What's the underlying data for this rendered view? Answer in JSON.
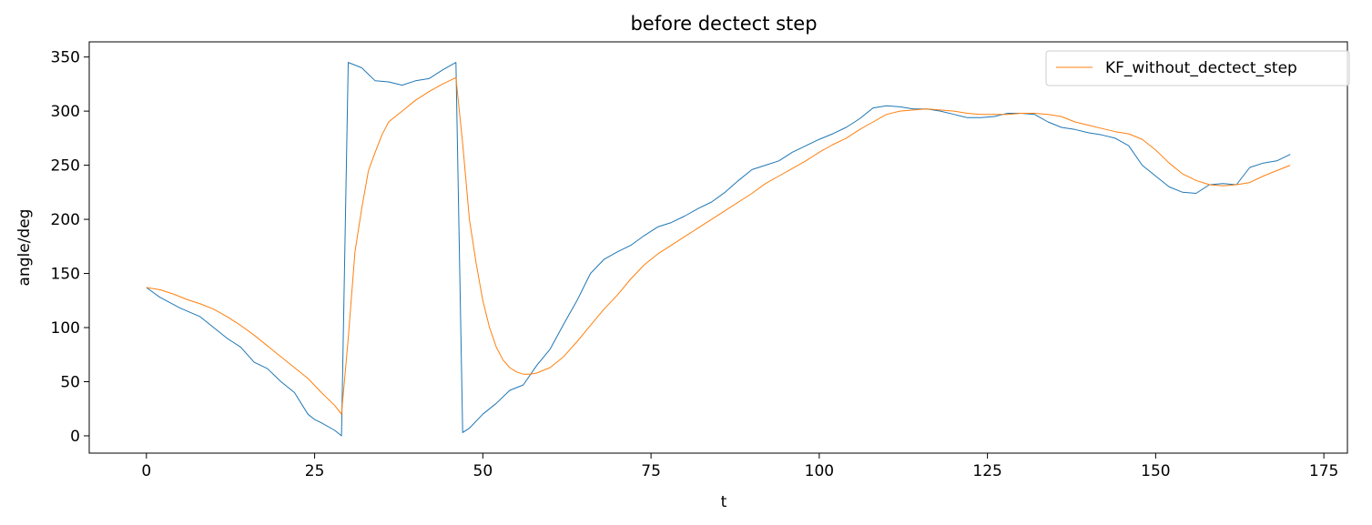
{
  "chart_data": {
    "type": "line",
    "title": "before dectect step",
    "xlabel": "t",
    "ylabel": "angle/deg",
    "xlim": [
      -8.5,
      178.5
    ],
    "ylim": [
      -16,
      364
    ],
    "xticks": [
      0,
      25,
      50,
      75,
      100,
      125,
      150,
      175
    ],
    "yticks": [
      0,
      50,
      100,
      150,
      200,
      250,
      300,
      350
    ],
    "grid": false,
    "legend_position": "top-right",
    "series": [
      {
        "label": "",
        "color": "#1f77b4",
        "x": [
          0,
          2,
          5,
          8,
          10,
          12,
          14,
          16,
          18,
          20,
          22,
          24,
          25,
          26,
          28,
          29,
          30,
          32,
          34,
          36,
          38,
          40,
          42,
          44,
          46,
          47,
          48,
          50,
          52,
          54,
          56,
          58,
          60,
          62,
          64,
          66,
          68,
          70,
          72,
          74,
          76,
          78,
          80,
          82,
          84,
          86,
          88,
          90,
          92,
          94,
          96,
          98,
          100,
          102,
          104,
          106,
          108,
          110,
          112,
          114,
          116,
          118,
          120,
          122,
          124,
          126,
          128,
          130,
          132,
          134,
          136,
          138,
          140,
          142,
          144,
          146,
          148,
          150,
          152,
          154,
          156,
          158,
          160,
          162,
          164,
          166,
          168,
          170
        ],
        "y": [
          137,
          128,
          118,
          110,
          100,
          90,
          82,
          68,
          62,
          50,
          40,
          20,
          15,
          12,
          5,
          0,
          345,
          340,
          328,
          327,
          324,
          328,
          330,
          338,
          345,
          3,
          7,
          20,
          30,
          42,
          47,
          65,
          80,
          103,
          125,
          150,
          163,
          170,
          176,
          185,
          193,
          197,
          203,
          210,
          216,
          225,
          236,
          246,
          250,
          254,
          262,
          268,
          274,
          279,
          285,
          293,
          303,
          305,
          304,
          302,
          302,
          300,
          297,
          294,
          294,
          295,
          298,
          298,
          297,
          290,
          285,
          283,
          280,
          278,
          275,
          268,
          250,
          240,
          230,
          225,
          224,
          232,
          233,
          232,
          248,
          252,
          254,
          260
        ]
      },
      {
        "name": "KF_without_dectect_step",
        "color": "#ff7f0e",
        "x": [
          0,
          2,
          4,
          6,
          8,
          10,
          12,
          14,
          16,
          18,
          20,
          22,
          24,
          26,
          28,
          29,
          30,
          31,
          32,
          33,
          34,
          35,
          36,
          38,
          40,
          42,
          44,
          46,
          47,
          48,
          49,
          50,
          51,
          52,
          53,
          54,
          55,
          56,
          57,
          58,
          60,
          62,
          64,
          66,
          68,
          70,
          72,
          74,
          76,
          78,
          80,
          82,
          84,
          86,
          88,
          90,
          92,
          94,
          96,
          98,
          100,
          102,
          104,
          106,
          108,
          110,
          112,
          114,
          116,
          118,
          120,
          122,
          124,
          126,
          128,
          130,
          132,
          134,
          136,
          138,
          140,
          142,
          144,
          146,
          148,
          150,
          152,
          154,
          156,
          158,
          160,
          162,
          164,
          166,
          168,
          170
        ],
        "y": [
          137,
          135,
          131,
          126,
          122,
          117,
          110,
          102,
          93,
          83,
          73,
          63,
          53,
          40,
          28,
          20,
          90,
          170,
          210,
          245,
          262,
          278,
          290,
          300,
          310,
          318,
          325,
          331,
          270,
          200,
          160,
          125,
          100,
          82,
          70,
          63,
          59,
          57,
          57,
          58,
          63,
          73,
          87,
          102,
          117,
          130,
          145,
          158,
          168,
          176,
          184,
          192,
          200,
          208,
          216,
          224,
          233,
          240,
          247,
          254,
          262,
          269,
          275,
          283,
          290,
          297,
          300,
          301,
          302,
          301,
          300,
          298,
          297,
          297,
          297,
          298,
          298,
          297,
          295,
          290,
          287,
          284,
          281,
          279,
          274,
          264,
          252,
          242,
          236,
          232,
          231,
          232,
          234,
          240,
          245,
          250
        ]
      }
    ]
  }
}
